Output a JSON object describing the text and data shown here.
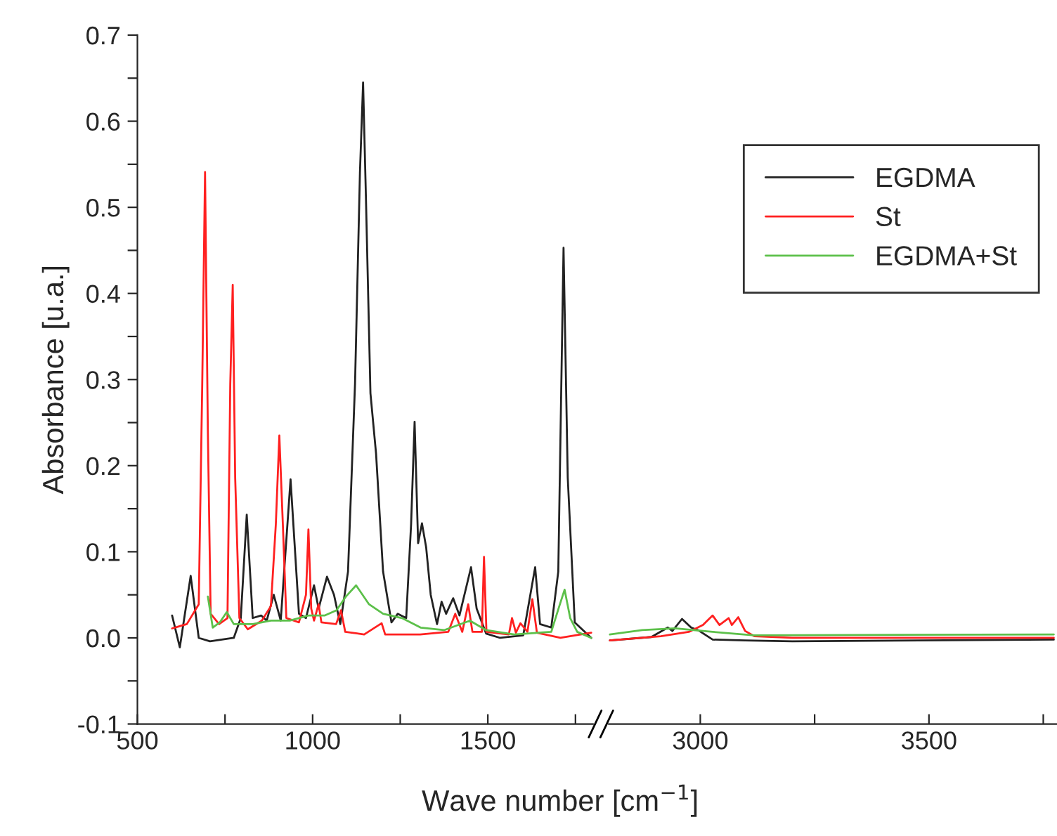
{
  "chart_data": [
    {
      "type": "line",
      "xlabel": "Wave number [cm$^{−1}$]",
      "ylabel": "Absorbance [u.a.]",
      "xlim": [
        500,
        1800
      ],
      "ylim": [
        -0.1,
        0.7
      ],
      "xticks": [
        500,
        {
          "value": 750,
          "label": null
        },
        1000,
        {
          "value": 1250,
          "label": null
        },
        1500,
        {
          "value": 1750,
          "label": null
        }
      ],
      "yticks": [
        -0.1,
        {
          "value": -0.05,
          "label": null
        },
        {
          "value": 0,
          "label": "0.0"
        },
        {
          "value": 0.05,
          "label": null
        },
        0.1,
        {
          "value": 0.15,
          "label": null
        },
        0.2,
        {
          "value": 0.25,
          "label": null
        },
        0.3,
        {
          "value": 0.35,
          "label": null
        },
        0.4,
        {
          "value": 0.45,
          "label": null
        },
        0.5,
        {
          "value": 0.55,
          "label": null
        },
        0.6,
        {
          "value": 0.65,
          "label": null
        },
        0.7
      ],
      "legend": false,
      "grid": false,
      "series": [
        {
          "color": "#222222",
          "x": [
            599,
            621,
            652,
            675,
            707,
            775,
            795,
            812,
            829,
            853,
            869,
            889,
            909,
            937,
            961,
            981,
            1004,
            1017,
            1041,
            1061,
            1079,
            1101,
            1121,
            1135,
            1144,
            1152,
            1165,
            1181,
            1201,
            1225,
            1243,
            1267,
            1281,
            1291,
            1301,
            1312,
            1324,
            1337,
            1355,
            1368,
            1381,
            1401,
            1419,
            1452,
            1468,
            1495,
            1535,
            1601,
            1635,
            1649,
            1681,
            1701,
            1716,
            1728,
            1748,
            1795
          ],
          "values": [
            0.026,
            -0.011,
            0.072,
            0.0,
            -0.004,
            0.0,
            0.023,
            0.143,
            0.023,
            0.026,
            0.02,
            0.05,
            0.02,
            0.184,
            0.028,
            0.023,
            0.061,
            0.034,
            0.071,
            0.05,
            0.016,
            0.077,
            0.295,
            0.54,
            0.645,
            0.513,
            0.284,
            0.214,
            0.077,
            0.018,
            0.028,
            0.023,
            0.132,
            0.251,
            0.11,
            0.133,
            0.105,
            0.05,
            0.016,
            0.042,
            0.028,
            0.046,
            0.026,
            0.082,
            0.034,
            0.005,
            0.0,
            0.003,
            0.082,
            0.016,
            0.012,
            0.077,
            0.453,
            0.186,
            0.018,
            0.0
          ]
        },
        {
          "color": "#ff2020",
          "x": [
            599,
            641,
            675,
            685,
            693,
            701,
            709,
            733,
            757,
            765,
            772,
            779,
            791,
            815,
            855,
            881,
            895,
            905,
            915,
            925,
            961,
            981,
            988,
            996,
            1004,
            1017,
            1025,
            1067,
            1081,
            1093,
            1147,
            1197,
            1207,
            1307,
            1387,
            1407,
            1427,
            1444,
            1456,
            1483,
            1489,
            1496,
            1560,
            1569,
            1580,
            1593,
            1613,
            1627,
            1640,
            1707,
            1795
          ],
          "values": [
            0.011,
            0.016,
            0.039,
            0.295,
            0.541,
            0.241,
            0.028,
            0.016,
            0.023,
            0.295,
            0.41,
            0.186,
            0.023,
            0.01,
            0.02,
            0.037,
            0.132,
            0.235,
            0.132,
            0.023,
            0.018,
            0.05,
            0.126,
            0.034,
            0.02,
            0.039,
            0.018,
            0.016,
            0.032,
            0.007,
            0.004,
            0.017,
            0.004,
            0.004,
            0.007,
            0.028,
            0.007,
            0.039,
            0.007,
            0.007,
            0.094,
            0.007,
            0.004,
            0.023,
            0.006,
            0.017,
            0.007,
            0.045,
            0.006,
            0.0,
            0.006
          ]
        },
        {
          "color": "#5cc04a",
          "x": [
            701,
            715,
            735,
            755,
            775,
            829,
            881,
            935,
            988,
            1035,
            1068,
            1095,
            1124,
            1161,
            1201,
            1255,
            1308,
            1375,
            1449,
            1495,
            1575,
            1681,
            1704,
            1719,
            1735,
            1755,
            1795
          ],
          "values": [
            0.048,
            0.012,
            0.018,
            0.03,
            0.016,
            0.016,
            0.02,
            0.02,
            0.026,
            0.026,
            0.032,
            0.048,
            0.061,
            0.039,
            0.028,
            0.023,
            0.012,
            0.009,
            0.02,
            0.009,
            0.004,
            0.007,
            0.037,
            0.056,
            0.023,
            0.007,
            0.0
          ]
        }
      ]
    },
    {
      "type": "line",
      "xlim": [
        2800,
        3780
      ],
      "ylim": [
        -0.1,
        0.7
      ],
      "xticks": [
        3000,
        {
          "value": 3250,
          "label": null
        },
        3500,
        {
          "value": 3750,
          "label": null
        }
      ],
      "tick_labels": "x",
      "legend": "top right",
      "grid": false,
      "series": [
        {
          "name": "EGDMA",
          "color": "#222222",
          "x": [
            2802,
            2893,
            2929,
            2939,
            2960,
            2980,
            2995,
            3027,
            3098,
            3201,
            3773
          ],
          "values": [
            -0.003,
            0.001,
            0.012,
            0.008,
            0.022,
            0.012,
            0.009,
            -0.002,
            -0.003,
            -0.004,
            -0.002
          ]
        },
        {
          "name": "St",
          "color": "#ff2020",
          "x": [
            2802,
            2914,
            2975,
            3006,
            3027,
            3042,
            3062,
            3069,
            3083,
            3098,
            3118,
            3201,
            3773
          ],
          "values": [
            -0.003,
            0.002,
            0.007,
            0.015,
            0.026,
            0.015,
            0.023,
            0.015,
            0.024,
            0.008,
            0.002,
            0.0,
            0.0
          ]
        },
        {
          "name": "EGDMA+St",
          "color": "#5cc04a",
          "x": [
            2802,
            2873,
            2945,
            2985,
            3027,
            3118,
            3773
          ],
          "values": [
            0.004,
            0.009,
            0.011,
            0.009,
            0.007,
            0.003,
            0.004
          ]
        }
      ]
    }
  ]
}
